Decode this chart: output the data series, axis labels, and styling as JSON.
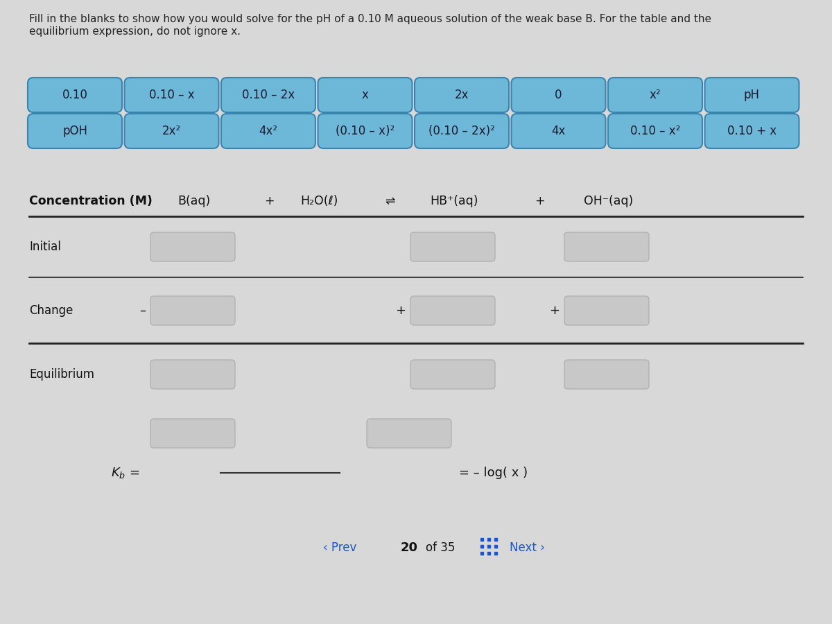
{
  "background_color": "#d8d8d8",
  "title_line1": "Fill in the blanks to show how you would solve for the pH of a 0.10 M aqueous solution of the weak base B. For the table and the",
  "title_line2": "equilibrium expression, do not ignore x.",
  "title_fontsize": 11.0,
  "button_row1": [
    "0.10",
    "0.10 – x",
    "0.10 – 2x",
    "x",
    "2x",
    "0",
    "x²",
    "pH"
  ],
  "button_row2": [
    "pOH",
    "2x²",
    "4x²",
    "(0.10 – x)²",
    "(0.10 – 2x)²",
    "4x",
    "0.10 – x²",
    "0.10 + x"
  ],
  "button_color": "#6db8d8",
  "button_text_color": "#1a1a2e",
  "button_border_color": "#3a85b0",
  "col_header": [
    "Concentration (M)",
    "B(aq)",
    "+",
    "H₂O(ℓ)",
    "⇌",
    "HB⁺(aq)",
    "+",
    "OH⁻(aq)"
  ],
  "col_header_fontsize": 12.5,
  "row_labels": [
    "Initial",
    "Change",
    "Equilibrium"
  ],
  "row_label_fontsize": 12.0,
  "change_signs_b": "–",
  "change_signs_hb": "+",
  "change_signs_oh": "+",
  "ph_text": "= – log( x )",
  "blank_box_color": "#c8c8c8",
  "blank_box_border": "#aaaaaa",
  "nav_prev": "‹ Prev",
  "nav_current": "20",
  "nav_total": "of 35",
  "nav_next": "Next ›",
  "nav_color": "#1a55cc",
  "line_color": "#222222"
}
